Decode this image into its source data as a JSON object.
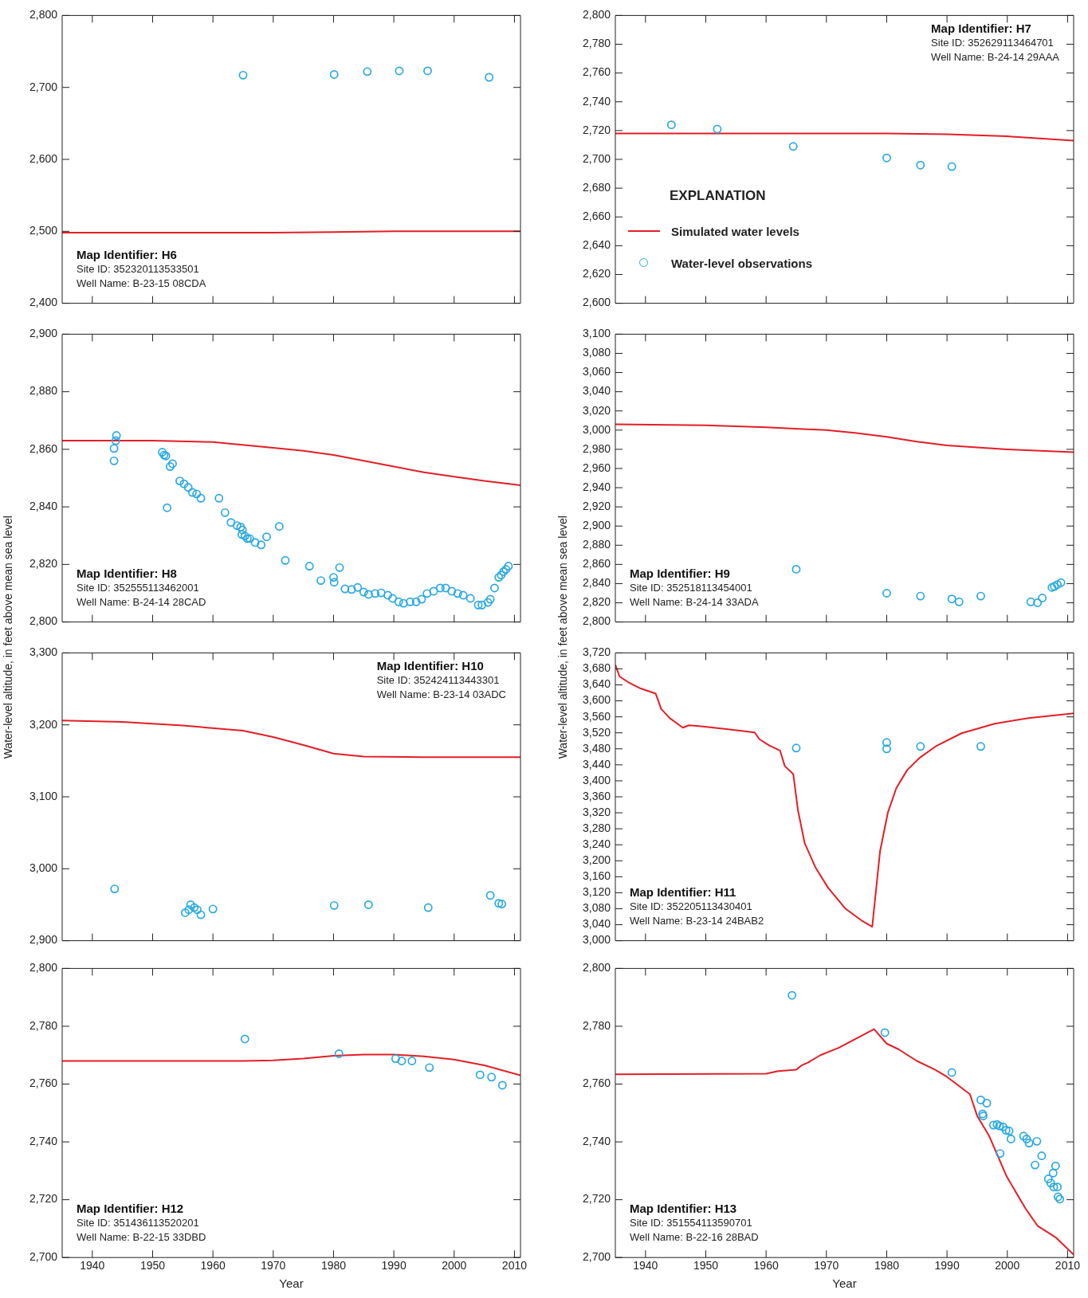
{
  "chart_data": [
    {
      "type": "line",
      "annotations": [
        "Map Identifier: H6",
        "Site ID: 352320113533501",
        "Well Name: B-23-15 08CDA"
      ],
      "xlim": [
        1935,
        2011
      ],
      "xticks": [
        1940,
        1950,
        1960,
        1970,
        1980,
        1990,
        2000,
        2010
      ],
      "ylim": [
        2400,
        2800
      ],
      "yticks": [
        {
          "value": 2400,
          "label": "2,400"
        },
        {
          "value": 2500,
          "label": "2,500"
        },
        {
          "value": 2600,
          "label": "2,600"
        },
        {
          "value": 2700,
          "label": "2,700"
        },
        {
          "value": 2800,
          "label": "2,800"
        }
      ],
      "tick_labels": "y",
      "series": [
        {
          "type": "line",
          "color": "#e41e26",
          "marker": "none",
          "x": [
            1935,
            1960,
            1970,
            1980,
            1990,
            2000,
            2011
          ],
          "values": [
            2498,
            2498,
            2498,
            2499,
            2500,
            2500,
            2500
          ]
        },
        {
          "type": "scatter",
          "color": "#29a9e1",
          "marker": "circle",
          "x": [
            1965,
            1980.1,
            1985.6,
            1990.9,
            1995.6,
            2005.8
          ],
          "values": [
            2717,
            2718,
            2722,
            2723,
            2723,
            2714
          ]
        }
      ]
    },
    {
      "type": "line",
      "annotations": [
        "Map Identifier: H7",
        "Site ID: 352629113464701",
        "Well Name: B-24-14 29AAA"
      ],
      "legend": "left",
      "legend_title": "EXPLANATION",
      "xlim": [
        1935,
        2011
      ],
      "xticks": [
        1940,
        1950,
        1960,
        1970,
        1980,
        1990,
        2000,
        2010
      ],
      "ylim": [
        2600,
        2800
      ],
      "yticks": [
        {
          "value": 2600,
          "label": "2,600"
        },
        {
          "value": 2620,
          "label": "2,620"
        },
        {
          "value": 2640,
          "label": "2,640"
        },
        {
          "value": 2660,
          "label": "2,660"
        },
        {
          "value": 2680,
          "label": "2,680"
        },
        {
          "value": 2700,
          "label": "2,700"
        },
        {
          "value": 2720,
          "label": "2,720"
        },
        {
          "value": 2740,
          "label": "2,740"
        },
        {
          "value": 2760,
          "label": "2,760"
        },
        {
          "value": 2780,
          "label": "2,780"
        },
        {
          "value": 2800,
          "label": "2,800"
        }
      ],
      "tick_labels": "y",
      "series": [
        {
          "name": "Simulated water levels",
          "type": "line",
          "color": "#e41e26",
          "marker": "none",
          "x": [
            1935,
            1960,
            1970,
            1980,
            1990,
            2000,
            2011
          ],
          "values": [
            2718,
            2718,
            2718,
            2718,
            2717.5,
            2716,
            2713
          ]
        },
        {
          "name": "Water-level observations",
          "type": "scatter",
          "color": "#29a9e1",
          "marker": "circle",
          "x": [
            1944.3,
            1951.9,
            1964.5,
            1980,
            1985.6,
            1990.8
          ],
          "values": [
            2724,
            2721,
            2709,
            2701,
            2696,
            2695
          ]
        }
      ]
    },
    {
      "type": "line",
      "annotations": [
        "Map Identifier: H8",
        "Site ID: 352555113462001",
        "Well Name: B-24-14 28CAD"
      ],
      "ylabel": "Water-level altitude, in feet above mean sea level",
      "xlim": [
        1935,
        2011
      ],
      "xticks": [
        1940,
        1950,
        1960,
        1970,
        1980,
        1990,
        2000,
        2010
      ],
      "ylim": [
        2800,
        2900
      ],
      "yticks": [
        {
          "value": 2800,
          "label": "2,800"
        },
        {
          "value": 2820,
          "label": "2,820"
        },
        {
          "value": 2840,
          "label": "2,840"
        },
        {
          "value": 2860,
          "label": "2,860"
        },
        {
          "value": 2880,
          "label": "2,880"
        },
        {
          "value": 2900,
          "label": "2,900"
        }
      ],
      "tick_labels": "y",
      "series": [
        {
          "type": "line",
          "color": "#e41e26",
          "marker": "none",
          "x": [
            1935,
            1950,
            1960,
            1970,
            1975,
            1980,
            1985,
            1990,
            1995,
            2000,
            2005,
            2011
          ],
          "values": [
            2863,
            2863,
            2862.5,
            2860.5,
            2859.5,
            2858,
            2856,
            2854,
            2852,
            2850.5,
            2849,
            2847.5
          ]
        },
        {
          "type": "scatter",
          "color": "#29a9e1",
          "marker": "circle",
          "x": [
            1943.6,
            1943.6,
            1943.9,
            1944,
            1951.6,
            1951.9,
            1952.2,
            1952.9,
            1953.3,
            1952.4,
            1954.5,
            1955.2,
            1955.9,
            1956.6,
            1957.3,
            1958,
            1961,
            1962,
            1963,
            1964,
            1964.6,
            1964.9,
            1964.8,
            1965.3,
            1965.7,
            1966.1,
            1967,
            1968,
            1968.9,
            1971,
            1972,
            1976,
            1977.9,
            1980,
            1980.1,
            1981,
            1981.9,
            1983,
            1984,
            1985,
            1985.8,
            1986.9,
            1987.9,
            1989,
            1989.8,
            1990.8,
            1991.6,
            1992.7,
            1993.7,
            1994.6,
            1995.5,
            1996.6,
            1997.7,
            1998.6,
            1999.6,
            2000.6,
            2001.5,
            2002.7,
            2004,
            2004.6,
            2005.6,
            2006,
            2006.7,
            2007.4,
            2007.8,
            2008.2,
            2008.6,
            2009
          ],
          "values": [
            2856,
            2860.3,
            2863,
            2864.8,
            2859,
            2858,
            2857.7,
            2854,
            2855,
            2839.7,
            2849,
            2848,
            2846.8,
            2845,
            2844.5,
            2843,
            2843,
            2838,
            2834.6,
            2833.5,
            2833,
            2832,
            2830.4,
            2829.9,
            2829,
            2829,
            2827.6,
            2826.8,
            2829.6,
            2833.2,
            2821.4,
            2819.4,
            2814.4,
            2815.5,
            2813.8,
            2818.9,
            2811.5,
            2811.3,
            2812,
            2810.4,
            2809.6,
            2809.9,
            2810.1,
            2809.3,
            2808.2,
            2807,
            2806.5,
            2807,
            2807,
            2807.9,
            2809.9,
            2810.7,
            2811.8,
            2811.8,
            2810.7,
            2809.9,
            2809.3,
            2808.2,
            2805.9,
            2805.9,
            2806.8,
            2807.9,
            2811.8,
            2815.5,
            2816.3,
            2817.5,
            2818.3,
            2819.4
          ]
        }
      ]
    },
    {
      "type": "line",
      "annotations": [
        "Map Identifier: H9",
        "Site ID: 352518113454001",
        "Well Name: B-24-14 33ADA"
      ],
      "ylabel": "Water-level altitude, in feet above mean sea level",
      "xlim": [
        1935,
        2011
      ],
      "xticks": [
        1940,
        1950,
        1960,
        1970,
        1980,
        1990,
        2000,
        2010
      ],
      "ylim": [
        2800,
        3100
      ],
      "yticks": [
        {
          "value": 2800,
          "label": "2,800"
        },
        {
          "value": 2820,
          "label": "2,820"
        },
        {
          "value": 2840,
          "label": "2,840"
        },
        {
          "value": 2860,
          "label": "2,860"
        },
        {
          "value": 2880,
          "label": "2,880"
        },
        {
          "value": 2900,
          "label": "2,900"
        },
        {
          "value": 2920,
          "label": "2,920"
        },
        {
          "value": 2940,
          "label": "2,940"
        },
        {
          "value": 2960,
          "label": "2,960"
        },
        {
          "value": 2980,
          "label": "2,980"
        },
        {
          "value": 3000,
          "label": "3,000"
        },
        {
          "value": 3020,
          "label": "3,020"
        },
        {
          "value": 3040,
          "label": "3,040"
        },
        {
          "value": 3060,
          "label": "3,060"
        },
        {
          "value": 3080,
          "label": "3,080"
        },
        {
          "value": 3100,
          "label": "3,100"
        }
      ],
      "tick_labels": "y",
      "series": [
        {
          "type": "line",
          "color": "#e41e26",
          "marker": "none",
          "x": [
            1935,
            1950,
            1960,
            1970,
            1975,
            1980,
            1985,
            1990,
            2000,
            2011
          ],
          "values": [
            3006,
            3005,
            3003,
            3000,
            2997,
            2993,
            2988,
            2984,
            2980,
            2977
          ]
        },
        {
          "type": "scatter",
          "color": "#29a9e1",
          "marker": "circle",
          "x": [
            1965,
            1980,
            1985.6,
            1990.8,
            1992,
            1995.6,
            2003.9,
            2005,
            2005.8,
            2007.4,
            2007.8,
            2008.3,
            2008.9
          ],
          "values": [
            2855,
            2830,
            2827,
            2824,
            2821,
            2827,
            2821,
            2820,
            2825,
            2836,
            2837,
            2839,
            2841
          ]
        }
      ]
    },
    {
      "type": "line",
      "annotations": [
        "Map Identifier: H10",
        "Site ID: 352424113443301",
        "Well Name: B-23-14 03ADC"
      ],
      "xlim": [
        1935,
        2011
      ],
      "xticks": [
        1940,
        1950,
        1960,
        1970,
        1980,
        1990,
        2000,
        2010
      ],
      "ylim": [
        2900,
        3300
      ],
      "yticks": [
        {
          "value": 2900,
          "label": "2,900"
        },
        {
          "value": 3000,
          "label": "3,000"
        },
        {
          "value": 3100,
          "label": "3,100"
        },
        {
          "value": 3200,
          "label": "3,200"
        },
        {
          "value": 3300,
          "label": "3,300"
        }
      ],
      "tick_labels": "y",
      "series": [
        {
          "type": "line",
          "color": "#e41e26",
          "marker": "none",
          "x": [
            1935,
            1945,
            1955,
            1965,
            1970,
            1975,
            1980,
            1985,
            1995,
            2011
          ],
          "values": [
            3206,
            3204,
            3199,
            3192,
            3183,
            3172,
            3160,
            3156,
            3155,
            3155
          ]
        },
        {
          "type": "scatter",
          "color": "#29a9e1",
          "marker": "circle",
          "x": [
            1943.7,
            1955.4,
            1956,
            1956.3,
            1956.9,
            1957.4,
            1958,
            1960,
            1980.1,
            1985.8,
            1995.7,
            2006,
            2007.4,
            2007.9
          ],
          "values": [
            2972,
            2939,
            2943,
            2950,
            2946,
            2943,
            2936,
            2944,
            2949,
            2950,
            2946,
            2963,
            2952,
            2951
          ]
        }
      ]
    },
    {
      "type": "line",
      "annotations": [
        "Map Identifier: H11",
        "Site ID: 352205113430401",
        "Well Name: B-23-14 24BAB2"
      ],
      "xlim": [
        1935,
        2011
      ],
      "xticks": [
        1940,
        1950,
        1960,
        1970,
        1980,
        1990,
        2000,
        2010
      ],
      "ylim": [
        3000,
        3720
      ],
      "yticks": [
        {
          "value": 3000,
          "label": "3,000"
        },
        {
          "value": 3040,
          "label": "3,040"
        },
        {
          "value": 3080,
          "label": "3,080"
        },
        {
          "value": 3120,
          "label": "3,120"
        },
        {
          "value": 3160,
          "label": "3,160"
        },
        {
          "value": 3200,
          "label": "3,200"
        },
        {
          "value": 3240,
          "label": "3,240"
        },
        {
          "value": 3280,
          "label": "3,280"
        },
        {
          "value": 3320,
          "label": "3,320"
        },
        {
          "value": 3360,
          "label": "3,360"
        },
        {
          "value": 3400,
          "label": "3,400"
        },
        {
          "value": 3440,
          "label": "3,440"
        },
        {
          "value": 3480,
          "label": "3,480"
        },
        {
          "value": 3520,
          "label": "3,520"
        },
        {
          "value": 3560,
          "label": "3,560"
        },
        {
          "value": 3600,
          "label": "3,600"
        },
        {
          "value": 3640,
          "label": "3,640"
        },
        {
          "value": 3680,
          "label": "3,680"
        },
        {
          "value": 3720,
          "label": "3,720"
        }
      ],
      "tick_labels": "y",
      "series": [
        {
          "type": "line",
          "color": "#e41e26",
          "marker": "none",
          "x": [
            1935,
            1935.7,
            1937.1,
            1939.2,
            1941.7,
            1942.6,
            1944,
            1946.2,
            1947.2,
            1948.9,
            1953.7,
            1958.1,
            1958.9,
            1960.6,
            1962.3,
            1963.1,
            1964.5,
            1965.3,
            1966.4,
            1968.2,
            1970.3,
            1973.1,
            1975.8,
            1977.6,
            1978.9,
            1980.2,
            1981.6,
            1983.4,
            1985.5,
            1988.3,
            1992.4,
            1997.9,
            2003.5,
            2011
          ],
          "values": [
            3690,
            3661,
            3647,
            3631,
            3618,
            3580,
            3557,
            3533,
            3539,
            3537,
            3529,
            3521,
            3504,
            3488,
            3476,
            3437,
            3417,
            3325,
            3244,
            3183,
            3132,
            3081,
            3051,
            3035,
            3224,
            3321,
            3382,
            3427,
            3458,
            3488,
            3519,
            3543,
            3557,
            3569
          ]
        },
        {
          "type": "scatter",
          "color": "#29a9e1",
          "marker": "circle",
          "x": [
            1965,
            1980,
            1980,
            1985.6,
            1995.6
          ],
          "values": [
            3482,
            3480,
            3496,
            3486,
            3486
          ]
        }
      ]
    },
    {
      "type": "line",
      "annotations": [
        "Map Identifier: H12",
        "Site ID: 351436113520201",
        "Well Name: B-22-15 33DBD"
      ],
      "xlabel": "Year",
      "xlim": [
        1935,
        2011
      ],
      "xticks": [
        1940,
        1950,
        1960,
        1970,
        1980,
        1990,
        2000,
        2010
      ],
      "ylim": [
        2700,
        2800
      ],
      "yticks": [
        {
          "value": 2700,
          "label": "2,700"
        },
        {
          "value": 2720,
          "label": "2,720"
        },
        {
          "value": 2740,
          "label": "2,740"
        },
        {
          "value": 2760,
          "label": "2,760"
        },
        {
          "value": 2780,
          "label": "2,780"
        },
        {
          "value": 2800,
          "label": "2,800"
        }
      ],
      "series": [
        {
          "type": "line",
          "color": "#e41e26",
          "marker": "none",
          "x": [
            1935,
            1965,
            1970,
            1975,
            1980,
            1985,
            1990,
            1995,
            2000,
            2005,
            2011
          ],
          "values": [
            2768,
            2768,
            2768.2,
            2768.8,
            2769.8,
            2770.2,
            2770.2,
            2769.6,
            2768.5,
            2766.5,
            2763
          ]
        },
        {
          "type": "scatter",
          "color": "#29a9e1",
          "marker": "circle",
          "x": [
            1965.3,
            1980.9,
            1990.3,
            1991.3,
            1993,
            1995.9,
            2004.3,
            2006.2,
            2008
          ],
          "values": [
            2775.6,
            2770.5,
            2768.8,
            2768,
            2768,
            2765.7,
            2763.2,
            2762.4,
            2759.6
          ]
        }
      ]
    },
    {
      "type": "line",
      "annotations": [
        "Map Identifier: H13",
        "Site ID: 351554113590701",
        "Well Name: B-22-16 28BAD"
      ],
      "xlabel": "Year",
      "xlim": [
        1935,
        2011
      ],
      "xticks": [
        1940,
        1950,
        1960,
        1970,
        1980,
        1990,
        2000,
        2010
      ],
      "ylim": [
        2700,
        2800
      ],
      "yticks": [
        {
          "value": 2700,
          "label": "2,700"
        },
        {
          "value": 2720,
          "label": "2,720"
        },
        {
          "value": 2740,
          "label": "2,740"
        },
        {
          "value": 2760,
          "label": "2,760"
        },
        {
          "value": 2780,
          "label": "2,780"
        },
        {
          "value": 2800,
          "label": "2,800"
        }
      ],
      "series": [
        {
          "type": "line",
          "color": "#e41e26",
          "marker": "none",
          "x": [
            1935,
            1960,
            1962,
            1965,
            1966,
            1967,
            1969,
            1972,
            1977.9,
            1980,
            1982,
            1985,
            1988,
            1990,
            1993.8,
            1995,
            1997,
            1999.9,
            2003,
            2005,
            2008,
            2011
          ],
          "values": [
            2763.4,
            2763.6,
            2764.5,
            2765,
            2766.6,
            2767.5,
            2770,
            2772.5,
            2779,
            2774,
            2772,
            2768,
            2765,
            2762.5,
            2756.5,
            2749,
            2742,
            2728,
            2717,
            2711,
            2707,
            2701
          ]
        },
        {
          "type": "scatter",
          "color": "#29a9e1",
          "marker": "circle",
          "x": [
            1964.3,
            1979.7,
            1990.8,
            1995.6,
            1996.6,
            1995.9,
            1996,
            1997.7,
            1998.3,
            1998.7,
            1999.3,
            1999.8,
            2000.3,
            1998.8,
            2000.6,
            2002.7,
            2003.2,
            2003.6,
            2004.9,
            2005.7,
            2004.6,
            2006.8,
            2007.2,
            2007.6,
            2008,
            2007.7,
            2008.3,
            2008.4,
            2008.7
          ],
          "values": [
            2790.7,
            2777.8,
            2764,
            2754.5,
            2753.4,
            2749.7,
            2749,
            2745.8,
            2746,
            2745.5,
            2745.2,
            2744,
            2743.8,
            2736,
            2741,
            2742,
            2741,
            2739.6,
            2740.2,
            2735.2,
            2732,
            2727.2,
            2725.8,
            2729.2,
            2731.7,
            2724.4,
            2724.4,
            2721,
            2720.2
          ]
        }
      ]
    }
  ]
}
